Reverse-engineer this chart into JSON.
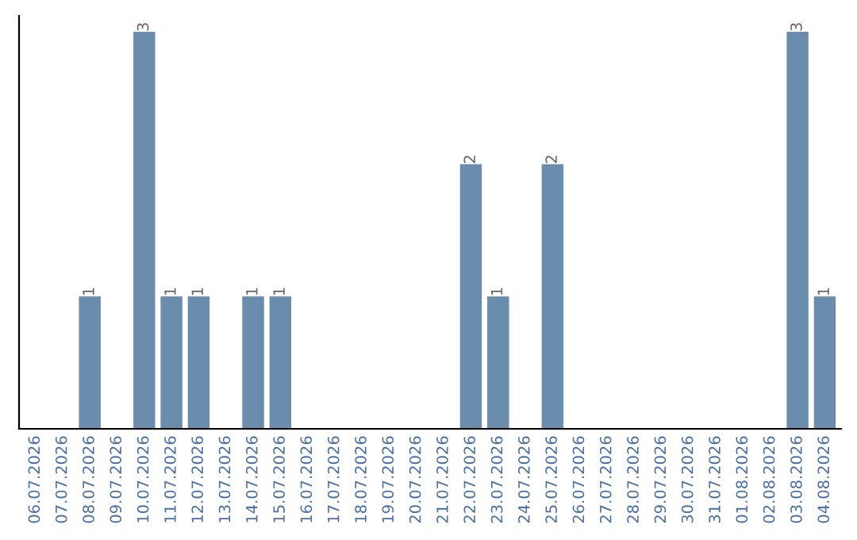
{
  "chart_data": {
    "type": "bar",
    "categories": [
      "06.07.2026",
      "07.07.2026",
      "08.07.2026",
      "09.07.2026",
      "10.07.2026",
      "11.07.2026",
      "12.07.2026",
      "13.07.2026",
      "14.07.2026",
      "15.07.2026",
      "16.07.2026",
      "17.07.2026",
      "18.07.2026",
      "19.07.2026",
      "20.07.2026",
      "21.07.2026",
      "22.07.2026",
      "23.07.2026",
      "24.07.2026",
      "25.07.2026",
      "26.07.2026",
      "27.07.2026",
      "28.07.2026",
      "29.07.2026",
      "30.07.2026",
      "31.07.2026",
      "01.08.2026",
      "02.08.2026",
      "03.08.2026",
      "04.08.2026"
    ],
    "values": [
      0,
      0,
      1,
      0,
      3,
      1,
      1,
      0,
      1,
      1,
      0,
      0,
      0,
      0,
      0,
      0,
      2,
      1,
      0,
      2,
      0,
      0,
      0,
      0,
      0,
      0,
      0,
      0,
      3,
      1
    ],
    "value_labels": [
      null,
      null,
      "1",
      null,
      "3",
      "1",
      "1",
      null,
      "1",
      "1",
      null,
      null,
      null,
      null,
      null,
      null,
      "2",
      "1",
      null,
      "2",
      null,
      null,
      null,
      null,
      null,
      null,
      null,
      null,
      "3",
      "1"
    ],
    "color": "#6a8cad",
    "grid": false,
    "tick_labels": "x"
  }
}
